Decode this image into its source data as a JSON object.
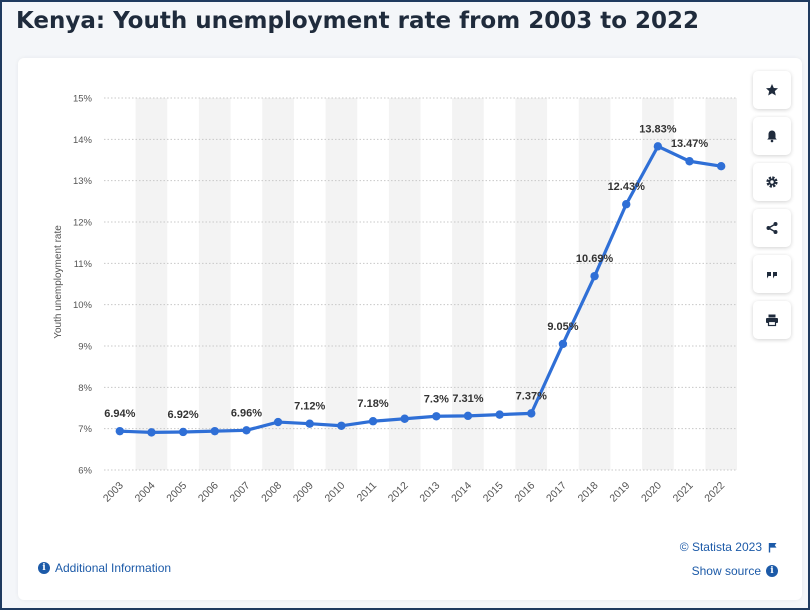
{
  "header": {
    "title": "Kenya: Youth unemployment rate from 2003 to 2022"
  },
  "toolbar": {
    "icons": [
      "star-icon",
      "bell-icon",
      "gear-icon",
      "share-icon",
      "quote-icon",
      "print-icon"
    ]
  },
  "footer": {
    "additional_info": "Additional Information",
    "copyright": "© Statista 2023",
    "show_source": "Show source"
  },
  "colors": {
    "line": "#2f6fd6",
    "accent_link": "#1c5aa8",
    "title": "#1f2b3c"
  },
  "chart_data": {
    "type": "line",
    "title": "Kenya: Youth unemployment rate from 2003 to 2022",
    "ylabel": "Youth unemployment rate",
    "xlabel": "",
    "ylim": [
      6,
      15
    ],
    "yticks": [
      "6%",
      "7%",
      "8%",
      "9%",
      "10%",
      "11%",
      "12%",
      "13%",
      "14%",
      "15%"
    ],
    "grid": true,
    "categories": [
      "2003",
      "2004",
      "2005",
      "2006",
      "2007",
      "2008",
      "2009",
      "2010",
      "2011",
      "2012",
      "2013",
      "2014",
      "2015",
      "2016",
      "2017",
      "2018",
      "2019",
      "2020",
      "2021",
      "2022"
    ],
    "series": [
      {
        "values": [
          6.94,
          6.91,
          6.92,
          6.94,
          6.96,
          7.16,
          7.12,
          7.07,
          7.18,
          7.24,
          7.3,
          7.31,
          7.34,
          7.37,
          9.05,
          10.69,
          12.43,
          13.83,
          13.47,
          13.35
        ]
      }
    ],
    "data_labels": [
      {
        "index": 0,
        "text": "6.94%"
      },
      {
        "index": 2,
        "text": "6.92%"
      },
      {
        "index": 4,
        "text": "6.96%"
      },
      {
        "index": 6,
        "text": "7.12%"
      },
      {
        "index": 8,
        "text": "7.18%"
      },
      {
        "index": 10,
        "text": "7.3%"
      },
      {
        "index": 11,
        "text": "7.31%"
      },
      {
        "index": 13,
        "text": "7.37%"
      },
      {
        "index": 14,
        "text": "9.05%"
      },
      {
        "index": 15,
        "text": "10.69%"
      },
      {
        "index": 16,
        "text": "12.43%"
      },
      {
        "index": 17,
        "text": "13.83%"
      },
      {
        "index": 18,
        "text": "13.47%"
      }
    ]
  }
}
